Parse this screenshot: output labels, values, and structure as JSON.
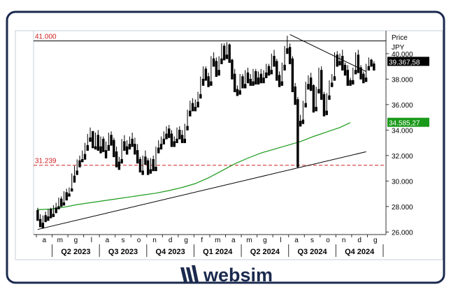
{
  "brand": {
    "name": "websim",
    "colors": {
      "navy": "#1b2a4e",
      "red": "#d02020",
      "green": "#1a9a1a"
    }
  },
  "chart_data": {
    "type": "candlestick",
    "title": "",
    "ylabel": "Price",
    "yunit": "JPY",
    "ylim": [
      25800,
      41800
    ],
    "y_ticks": [
      26000,
      28000,
      30000,
      32000,
      34000,
      36000,
      38000,
      40000
    ],
    "y_tick_labels": [
      "26.000",
      "28.000",
      "30.000",
      "32.000",
      "34.000",
      "36.000",
      "38.000",
      "40.000"
    ],
    "x_months": [
      "a",
      "m",
      "g",
      "l",
      "a",
      "s",
      "o",
      "n",
      "d",
      "g",
      "f",
      "m",
      "a",
      "m",
      "g",
      "l",
      "a",
      "s",
      "o",
      "n",
      "d",
      "g"
    ],
    "x_quarters": [
      "Q2 2023",
      "Q3 2023",
      "Q4 2023",
      "Q1 2024",
      "Q2 2024",
      "Q3 2024",
      "Q4 2024"
    ],
    "levels": [
      {
        "label": "41.000",
        "value": 41000,
        "style": "solid",
        "color": "#000000"
      },
      {
        "label": "31.239",
        "value": 31239,
        "style": "dashed",
        "color": "#d02020"
      }
    ],
    "last_price": {
      "label": "39.367,58",
      "value": 39367.58
    },
    "moving_average": {
      "label": "34.585,27",
      "value": 34585.27,
      "color": "#1a9a1a",
      "points": [
        [
          0,
          27750
        ],
        [
          5,
          27800
        ],
        [
          10,
          27950
        ],
        [
          15,
          28150
        ],
        [
          20,
          28300
        ],
        [
          25,
          28450
        ],
        [
          30,
          28600
        ],
        [
          35,
          28750
        ],
        [
          40,
          28900
        ],
        [
          45,
          29050
        ],
        [
          50,
          29250
        ],
        [
          55,
          29500
        ],
        [
          60,
          29800
        ],
        [
          65,
          30250
        ],
        [
          70,
          30800
        ],
        [
          75,
          31350
        ],
        [
          80,
          31800
        ],
        [
          85,
          32200
        ],
        [
          90,
          32500
        ],
        [
          95,
          32800
        ],
        [
          100,
          33100
        ],
        [
          105,
          33500
        ],
        [
          110,
          33850
        ],
        [
          115,
          34200
        ],
        [
          119,
          34585
        ]
      ]
    },
    "trendlines": [
      {
        "from": [
          0,
          26200
        ],
        "to": [
          125,
          32300
        ]
      },
      {
        "from": [
          96,
          41500
        ],
        "to": [
          125,
          38600
        ]
      }
    ],
    "candles": [
      [
        27700,
        27900,
        27100,
        26900
      ],
      [
        27000,
        27400,
        26600,
        26400
      ],
      [
        26700,
        27300,
        26500,
        26300
      ],
      [
        27300,
        27600,
        27000,
        26800
      ],
      [
        27200,
        27800,
        27000,
        26900
      ],
      [
        27800,
        27900,
        27300,
        27100
      ],
      [
        27400,
        28100,
        27300,
        27200
      ],
      [
        27900,
        28300,
        27700,
        27500
      ],
      [
        28000,
        28700,
        27900,
        27800
      ],
      [
        28600,
        28800,
        28200,
        28000
      ],
      [
        28300,
        29200,
        28200,
        28100
      ],
      [
        29100,
        29400,
        28700,
        28500
      ],
      [
        29000,
        29500,
        28900,
        28800
      ],
      [
        29400,
        30600,
        29300,
        29200
      ],
      [
        30400,
        31200,
        30100,
        29900
      ],
      [
        30800,
        31700,
        30600,
        30500
      ],
      [
        31600,
        32000,
        31300,
        31100
      ],
      [
        31700,
        32400,
        31600,
        31500
      ],
      [
        32100,
        33000,
        31800,
        31700
      ],
      [
        32800,
        33700,
        32600,
        32400
      ],
      [
        33400,
        34200,
        33300,
        33100
      ],
      [
        33900,
        33900,
        32800,
        32600
      ],
      [
        32700,
        33800,
        32600,
        32500
      ],
      [
        33600,
        34000,
        32600,
        32400
      ],
      [
        32700,
        33500,
        32400,
        32200
      ],
      [
        33300,
        33500,
        32500,
        32300
      ],
      [
        32400,
        33100,
        32000,
        31800
      ],
      [
        32800,
        33800,
        32600,
        32400
      ],
      [
        33600,
        33900,
        33000,
        32800
      ],
      [
        33200,
        33400,
        32100,
        31900
      ],
      [
        32300,
        32700,
        31300,
        31100
      ],
      [
        31500,
        31900,
        31100,
        30900
      ],
      [
        31700,
        33300,
        31600,
        31400
      ],
      [
        33100,
        33600,
        32600,
        32400
      ],
      [
        32700,
        33200,
        32300,
        32100
      ],
      [
        32900,
        33500,
        32700,
        32500
      ],
      [
        33300,
        33800,
        32900,
        32700
      ],
      [
        32900,
        33400,
        32300,
        32100
      ],
      [
        32400,
        32900,
        31600,
        31400
      ],
      [
        31700,
        31900,
        30900,
        30700
      ],
      [
        30800,
        32000,
        30700,
        30500
      ],
      [
        31900,
        32400,
        31500,
        31300
      ],
      [
        31600,
        31800,
        30700,
        30500
      ],
      [
        30900,
        31800,
        30800,
        30600
      ],
      [
        31700,
        32000,
        31000,
        30800
      ],
      [
        31100,
        32700,
        31000,
        30800
      ],
      [
        32600,
        33200,
        32400,
        32200
      ],
      [
        32900,
        33500,
        32700,
        32500
      ],
      [
        33300,
        33900,
        33100,
        32900
      ],
      [
        33700,
        34300,
        33500,
        33300
      ],
      [
        34100,
        34400,
        33600,
        33400
      ],
      [
        33700,
        34000,
        32900,
        32700
      ],
      [
        33100,
        33500,
        32900,
        32700
      ],
      [
        33300,
        34200,
        33200,
        33000
      ],
      [
        34000,
        34300,
        33500,
        33300
      ],
      [
        33600,
        34000,
        33200,
        33000
      ],
      [
        33300,
        34500,
        33200,
        33000
      ],
      [
        34300,
        35600,
        34200,
        34000
      ],
      [
        35500,
        36300,
        35300,
        35100
      ],
      [
        36100,
        36500,
        35700,
        35500
      ],
      [
        35800,
        36400,
        35700,
        35500
      ],
      [
        36200,
        37000,
        36000,
        35800
      ],
      [
        36800,
        38200,
        36700,
        36500
      ],
      [
        38000,
        39000,
        37700,
        37500
      ],
      [
        38800,
        39000,
        38100,
        37900
      ],
      [
        38200,
        38500,
        37600,
        37400
      ],
      [
        37800,
        39800,
        37700,
        37500
      ],
      [
        39600,
        40100,
        39200,
        39000
      ],
      [
        39400,
        39700,
        38400,
        38200
      ],
      [
        38700,
        39800,
        38500,
        38300
      ],
      [
        39600,
        40800,
        39400,
        39200
      ],
      [
        40600,
        40800,
        39700,
        39500
      ],
      [
        39900,
        40900,
        39800,
        39600
      ],
      [
        40700,
        40800,
        39500,
        39300
      ],
      [
        39500,
        39600,
        38200,
        38000
      ],
      [
        38400,
        38800,
        37200,
        37000
      ],
      [
        37200,
        37500,
        36900,
        36700
      ],
      [
        37100,
        38400,
        37000,
        36800
      ],
      [
        38200,
        38400,
        37500,
        37300
      ],
      [
        37600,
        38700,
        37500,
        37300
      ],
      [
        38500,
        38900,
        37900,
        37700
      ],
      [
        38000,
        38400,
        37700,
        37500
      ],
      [
        37800,
        38800,
        37700,
        37500
      ],
      [
        38600,
        38800,
        37800,
        37600
      ],
      [
        38100,
        38600,
        37800,
        37600
      ],
      [
        38400,
        38800,
        37900,
        37700
      ],
      [
        38100,
        38700,
        37900,
        37700
      ],
      [
        38500,
        39200,
        38300,
        38100
      ],
      [
        39000,
        39200,
        38500,
        38300
      ],
      [
        38700,
        40000,
        38600,
        38400
      ],
      [
        39800,
        40300,
        39200,
        39000
      ],
      [
        39400,
        39600,
        38100,
        37900
      ],
      [
        38300,
        38600,
        37600,
        37400
      ],
      [
        37800,
        39300,
        37700,
        37500
      ],
      [
        39100,
        40600,
        38900,
        38700
      ],
      [
        40400,
        41400,
        40200,
        40000
      ],
      [
        40500,
        40800,
        39400,
        39200
      ],
      [
        39600,
        39800,
        37200,
        37000
      ],
      [
        37400,
        37700,
        36200,
        36000
      ],
      [
        36400,
        36600,
        31200,
        31100
      ],
      [
        34700,
        35200,
        34500,
        34300
      ],
      [
        34800,
        36300,
        34700,
        34500
      ],
      [
        36100,
        37800,
        36000,
        35800
      ],
      [
        37600,
        38300,
        37400,
        37200
      ],
      [
        38100,
        38500,
        37300,
        37100
      ],
      [
        37500,
        37600,
        35600,
        35400
      ],
      [
        35800,
        37400,
        35700,
        35500
      ],
      [
        37200,
        38900,
        37100,
        36900
      ],
      [
        38700,
        39000,
        36600,
        36400
      ],
      [
        36800,
        37000,
        35300,
        35100
      ],
      [
        35500,
        36900,
        35400,
        35200
      ],
      [
        36700,
        37900,
        36600,
        36400
      ],
      [
        37700,
        38400,
        37600,
        37400
      ],
      [
        38200,
        40100,
        38100,
        37900
      ],
      [
        39900,
        40200,
        39200,
        39000
      ],
      [
        39400,
        40000,
        39300,
        39100
      ],
      [
        39800,
        40300,
        38900,
        38700
      ],
      [
        39100,
        39300,
        38500,
        38300
      ],
      [
        38700,
        39100,
        37700,
        37500
      ],
      [
        37900,
        38100,
        37700,
        37500
      ],
      [
        37900,
        38900,
        37800,
        37600
      ],
      [
        38700,
        40100,
        38600,
        38400
      ],
      [
        39900,
        40300,
        38700,
        38500
      ],
      [
        38900,
        39100,
        38200,
        38000
      ],
      [
        38400,
        38600,
        37900,
        37700
      ],
      [
        38100,
        39200,
        38000,
        37800
      ],
      [
        39000,
        39700,
        38900,
        38700
      ],
      [
        39500,
        39600,
        39200,
        39000
      ],
      [
        39200,
        39400,
        38800,
        38700
      ]
    ]
  }
}
